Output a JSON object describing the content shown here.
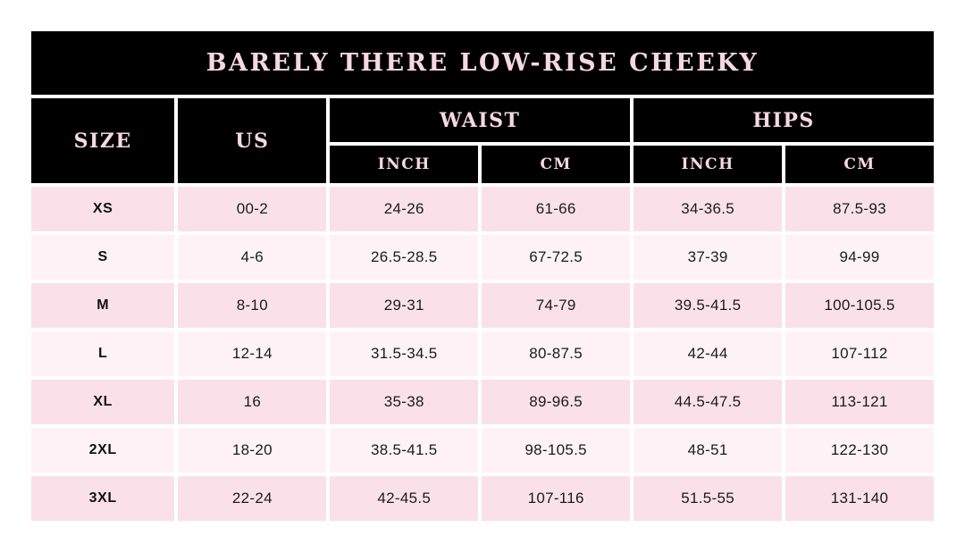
{
  "title": "BARELY THERE LOW-RISE CHEEKY",
  "header": {
    "size": "SIZE",
    "us": "US",
    "waist": "WAIST",
    "hips": "HIPS",
    "waist_inch": "INCH",
    "waist_cm": "CM",
    "hips_inch": "INCH",
    "hips_cm": "CM"
  },
  "colors": {
    "header_bg": "#000000",
    "header_text": "#f6d8e3",
    "row_odd_bg": "#fae0e9",
    "row_even_bg": "#fff2f7",
    "data_text": "#1b1b1b",
    "page_bg": "#ffffff"
  },
  "chart_data": {
    "type": "table",
    "title": "BARELY THERE LOW-RISE CHEEKY",
    "columns": [
      "SIZE",
      "US",
      "WAIST INCH",
      "WAIST CM",
      "HIPS INCH",
      "HIPS CM"
    ],
    "rows": [
      [
        "XS",
        "00-2",
        "24-26",
        "61-66",
        "34-36.5",
        "87.5-93"
      ],
      [
        "S",
        "4-6",
        "26.5-28.5",
        "67-72.5",
        "37-39",
        "94-99"
      ],
      [
        "M",
        "8-10",
        "29-31",
        "74-79",
        "39.5-41.5",
        "100-105.5"
      ],
      [
        "L",
        "12-14",
        "31.5-34.5",
        "80-87.5",
        "42-44",
        "107-112"
      ],
      [
        "XL",
        "16",
        "35-38",
        "89-96.5",
        "44.5-47.5",
        "113-121"
      ],
      [
        "2XL",
        "18-20",
        "38.5-41.5",
        "98-105.5",
        "48-51",
        "122-130"
      ],
      [
        "3XL",
        "22-24",
        "42-45.5",
        "107-116",
        "51.5-55",
        "131-140"
      ]
    ]
  }
}
